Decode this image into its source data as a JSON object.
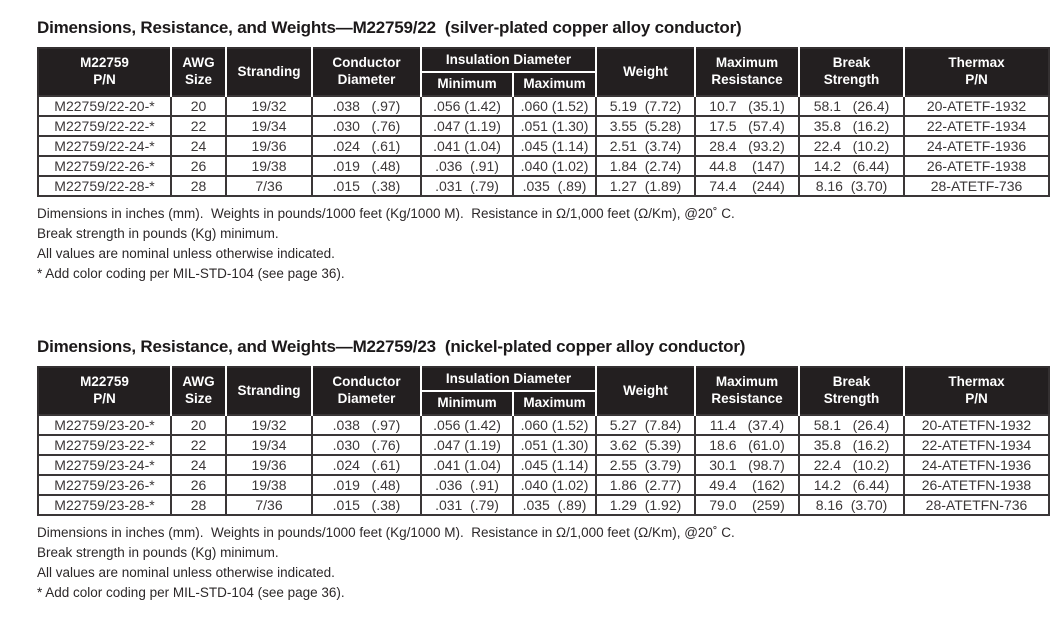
{
  "colors": {
    "header_bg": "#231f20",
    "header_text": "#ffffff",
    "body_text": "#3b3738",
    "border": "#3a3637",
    "page_bg": "#ffffff"
  },
  "table_headers": {
    "pn": "M22759\nP/N",
    "awg": "AWG\nSize",
    "stranding": "Stranding",
    "conductor_diameter": "Conductor\nDiameter",
    "insulation_group": "Insulation Diameter",
    "insulation_min": "Minimum",
    "insulation_max": "Maximum",
    "weight": "Weight",
    "max_resistance": "Maximum\nResistance",
    "break_strength": "Break\nStrength",
    "thermax": "Thermax\nP/N"
  },
  "sections": [
    {
      "id": "m22759-22",
      "title": "Dimensions, Resistance, and Weights—M22759/22  (silver-plated copper alloy conductor)",
      "rows": [
        [
          "M22759/22-20-*",
          "20",
          "19/32",
          ".038   (.97)",
          ".056 (1.42)",
          ".060 (1.52)",
          "5.19  (7.72)",
          "10.7   (35.1)",
          "58.1   (26.4)",
          "20-ATETF-1932"
        ],
        [
          "M22759/22-22-*",
          "22",
          "19/34",
          ".030   (.76)",
          ".047 (1.19)",
          ".051 (1.30)",
          "3.55  (5.28)",
          "17.5   (57.4)",
          "35.8   (16.2)",
          "22-ATETF-1934"
        ],
        [
          "M22759/22-24-*",
          "24",
          "19/36",
          ".024   (.61)",
          ".041 (1.04)",
          ".045 (1.14)",
          "2.51  (3.74)",
          "28.4   (93.2)",
          "22.4   (10.2)",
          "24-ATETF-1936"
        ],
        [
          "M22759/22-26-*",
          "26",
          "19/38",
          ".019   (.48)",
          ".036  (.91)",
          ".040 (1.02)",
          "1.84  (2.74)",
          "44.8    (147)",
          "14.2   (6.44)",
          "26-ATETF-1938"
        ],
        [
          "M22759/22-28-*",
          "28",
          "7/36",
          ".015   (.38)",
          ".031  (.79)",
          ".035  (.89)",
          "1.27  (1.89)",
          "74.4    (244)",
          "8.16  (3.70)",
          "28-ATETF-736"
        ]
      ],
      "footnotes": [
        "Dimensions in inches (mm).  Weights in pounds/1000 feet (Kg/1000 M).  Resistance in Ω/1,000 feet (Ω/Km), @20˚ C.",
        "Break strength in pounds (Kg) minimum.",
        "All values are nominal unless otherwise indicated.",
        "* Add color coding per MIL-STD-104 (see page 36)."
      ]
    },
    {
      "id": "m22759-23",
      "title": "Dimensions, Resistance, and Weights—M22759/23  (nickel-plated copper alloy conductor)",
      "rows": [
        [
          "M22759/23-20-*",
          "20",
          "19/32",
          ".038   (.97)",
          ".056 (1.42)",
          ".060 (1.52)",
          "5.27  (7.84)",
          "11.4   (37.4)",
          "58.1   (26.4)",
          "20-ATETFN-1932"
        ],
        [
          "M22759/23-22-*",
          "22",
          "19/34",
          ".030   (.76)",
          ".047 (1.19)",
          ".051 (1.30)",
          "3.62  (5.39)",
          "18.6   (61.0)",
          "35.8   (16.2)",
          "22-ATETFN-1934"
        ],
        [
          "M22759/23-24-*",
          "24",
          "19/36",
          ".024   (.61)",
          ".041 (1.04)",
          ".045 (1.14)",
          "2.55  (3.79)",
          "30.1   (98.7)",
          "22.4   (10.2)",
          "24-ATETFN-1936"
        ],
        [
          "M22759/23-26-*",
          "26",
          "19/38",
          ".019   (.48)",
          ".036  (.91)",
          ".040 (1.02)",
          "1.86  (2.77)",
          "49.4    (162)",
          "14.2   (6.44)",
          "26-ATETFN-1938"
        ],
        [
          "M22759/23-28-*",
          "28",
          "7/36",
          ".015   (.38)",
          ".031  (.79)",
          ".035  (.89)",
          "1.29  (1.92)",
          "79.0    (259)",
          "8.16  (3.70)",
          "28-ATETFN-736"
        ]
      ],
      "footnotes": [
        "Dimensions in inches (mm).  Weights in pounds/1000 feet (Kg/1000 M).  Resistance in Ω/1,000 feet (Ω/Km), @20˚ C.",
        "Break strength in pounds (Kg) minimum.",
        "All values are nominal unless otherwise indicated.",
        "* Add color coding per MIL-STD-104 (see page 36)."
      ]
    }
  ]
}
